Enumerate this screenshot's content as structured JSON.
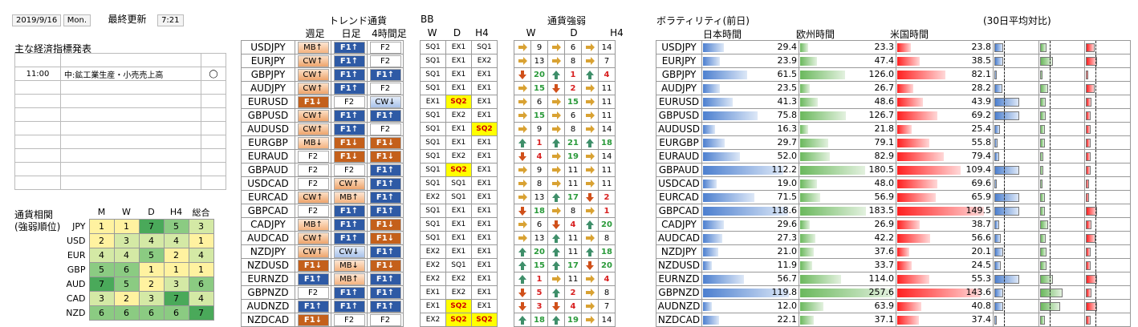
{
  "header": {
    "date": "2019/9/16",
    "weekday": "Mon.",
    "updated_label": "最終更新",
    "time": "7:21"
  },
  "econ": {
    "title": "主な経済指標発表",
    "rows": [
      {
        "time": "",
        "event": "",
        "mark": ""
      },
      {
        "time": "11:00",
        "event": "中:鉱工業生産・小売売上高",
        "mark": "◯"
      },
      {
        "time": "",
        "event": "",
        "mark": ""
      },
      {
        "time": "",
        "event": "",
        "mark": ""
      },
      {
        "time": "",
        "event": "",
        "mark": ""
      },
      {
        "time": "",
        "event": "",
        "mark": ""
      },
      {
        "time": "",
        "event": "",
        "mark": ""
      },
      {
        "time": "",
        "event": "",
        "mark": ""
      },
      {
        "time": "",
        "event": "",
        "mark": ""
      },
      {
        "time": "",
        "event": "",
        "mark": ""
      }
    ]
  },
  "corr": {
    "label1": "通貨相関",
    "label2": "(強弱順位)",
    "headers": [
      "M",
      "W",
      "D",
      "H4",
      "総合"
    ],
    "rows": [
      {
        "ccy": "JPY",
        "v": [
          "1",
          "1",
          "7",
          "5",
          "3"
        ]
      },
      {
        "ccy": "USD",
        "v": [
          "2",
          "3",
          "4",
          "4",
          "1"
        ]
      },
      {
        "ccy": "EUR",
        "v": [
          "4",
          "4",
          "5",
          "2",
          "4"
        ]
      },
      {
        "ccy": "GBP",
        "v": [
          "5",
          "6",
          "1",
          "1",
          "1"
        ]
      },
      {
        "ccy": "AUD",
        "v": [
          "7",
          "5",
          "2",
          "3",
          "6"
        ]
      },
      {
        "ccy": "CAD",
        "v": [
          "3",
          "2",
          "3",
          "7",
          "4"
        ]
      },
      {
        "ccy": "NZD",
        "v": [
          "6",
          "6",
          "6",
          "6",
          "7"
        ]
      }
    ]
  },
  "trend": {
    "title": "トレンド通貨",
    "headers": [
      "週足",
      "日足",
      "4時間足"
    ],
    "rows": [
      {
        "pair": "USDJPY",
        "w": "MB↑",
        "d": "F1↑",
        "h": "F2"
      },
      {
        "pair": "EURJPY",
        "w": "CW↑",
        "d": "F1↑",
        "h": "F2"
      },
      {
        "pair": "GBPJPY",
        "w": "CW↑",
        "d": "F1↑",
        "h": "F1↑"
      },
      {
        "pair": "AUDJPY",
        "w": "CW↑",
        "d": "F1↑",
        "h": "F2"
      },
      {
        "pair": "EURUSD",
        "w": "F1↓",
        "d": "F2",
        "h": "CW↓"
      },
      {
        "pair": "GBPUSD",
        "w": "CW↑",
        "d": "F1↑",
        "h": "F1↑"
      },
      {
        "pair": "AUDUSD",
        "w": "CW↑",
        "d": "F1↑",
        "h": "F2"
      },
      {
        "pair": "EURGBP",
        "w": "MB↓",
        "d": "F1↓",
        "h": "F1↓"
      },
      {
        "pair": "EURAUD",
        "w": "F2",
        "d": "F1↓",
        "h": "F1↓"
      },
      {
        "pair": "GBPAUD",
        "w": "F2",
        "d": "F2",
        "h": "F1↑"
      },
      {
        "pair": "USDCAD",
        "w": "F2",
        "d": "CW↑",
        "h": "F1↑"
      },
      {
        "pair": "EURCAD",
        "w": "CW↑",
        "d": "MB↑",
        "h": "F1↑"
      },
      {
        "pair": "GBPCAD",
        "w": "F2",
        "d": "F1↑",
        "h": "F1↑"
      },
      {
        "pair": "CADJPY",
        "w": "MB↑",
        "d": "F1↑",
        "h": "F1↓"
      },
      {
        "pair": "AUDCAD",
        "w": "CW↑",
        "d": "F1↑",
        "h": "F1↓"
      },
      {
        "pair": "NZDJPY",
        "w": "CW↑",
        "d": "CW↓",
        "h": "F1↑"
      },
      {
        "pair": "NZDUSD",
        "w": "F1↓",
        "d": "MB↓",
        "h": "F1↓"
      },
      {
        "pair": "EURNZD",
        "w": "F1↑",
        "d": "MB↑",
        "h": "F1↑"
      },
      {
        "pair": "GBPNZD",
        "w": "F2",
        "d": "F1↑",
        "h": "F1↑"
      },
      {
        "pair": "AUDNZD",
        "w": "F1↑",
        "d": "F1↑",
        "h": "F1↑"
      },
      {
        "pair": "NZDCAD",
        "w": "F1↓",
        "d": "F2",
        "h": "F2"
      }
    ]
  },
  "bb": {
    "title": "BB",
    "headers": [
      "W",
      "D",
      "H4"
    ],
    "rows": [
      [
        "SQ1",
        "EX1",
        "SQ1"
      ],
      [
        "SQ1",
        "EX1",
        "EX2"
      ],
      [
        "SQ1",
        "EX1",
        "EX1"
      ],
      [
        "SQ1",
        "EX1",
        "EX1"
      ],
      [
        "EX1",
        "SQ2",
        "EX1"
      ],
      [
        "SQ1",
        "EX2",
        "EX1"
      ],
      [
        "SQ1",
        "EX1",
        "SQ2"
      ],
      [
        "SQ1",
        "EX1",
        "EX1"
      ],
      [
        "SQ1",
        "EX2",
        "EX1"
      ],
      [
        "SQ1",
        "SQ2",
        "EX1"
      ],
      [
        "SQ1",
        "SQ1",
        "EX1"
      ],
      [
        "EX2",
        "SQ1",
        "EX1"
      ],
      [
        "SQ1",
        "EX1",
        "EX1"
      ],
      [
        "SQ1",
        "EX1",
        "EX1"
      ],
      [
        "SQ1",
        "EX1",
        "EX1"
      ],
      [
        "EX2",
        "EX1",
        "EX1"
      ],
      [
        "EX2",
        "SQ1",
        "EX1"
      ],
      [
        "EX2",
        "EX2",
        "EX1"
      ],
      [
        "EX1",
        "EX2",
        "EX1"
      ],
      [
        "EX1",
        "SQ2",
        "EX1"
      ],
      [
        "EX2",
        "SQ2",
        "SQ2"
      ]
    ]
  },
  "strength": {
    "title": "通貨強弱",
    "headers": [
      "W",
      "D",
      "H4"
    ],
    "rows": [
      [
        "s",
        "9",
        "s",
        "6",
        "s",
        "14"
      ],
      [
        "s",
        "13",
        "s",
        "8",
        "s",
        "7"
      ],
      [
        "d",
        "20",
        "u",
        "1",
        "u",
        "4"
      ],
      [
        "s",
        "15",
        "d",
        "2",
        "s",
        "11"
      ],
      [
        "s",
        "6",
        "s",
        "15",
        "s",
        "11"
      ],
      [
        "s",
        "15",
        "s",
        "6",
        "s",
        "11"
      ],
      [
        "s",
        "9",
        "s",
        "8",
        "s",
        "14"
      ],
      [
        "u",
        "1",
        "u",
        "21",
        "u",
        "18"
      ],
      [
        "d",
        "4",
        "s",
        "19",
        "s",
        "14"
      ],
      [
        "s",
        "9",
        "s",
        "11",
        "s",
        "11"
      ],
      [
        "s",
        "8",
        "s",
        "11",
        "s",
        "11"
      ],
      [
        "s",
        "13",
        "u",
        "17",
        "d",
        "2"
      ],
      [
        "d",
        "18",
        "s",
        "8",
        "s",
        "1"
      ],
      [
        "s",
        "6",
        "d",
        "4",
        "u",
        "20"
      ],
      [
        "s",
        "13",
        "u",
        "11",
        "s",
        "8"
      ],
      [
        "u",
        "20",
        "u",
        "11",
        "u",
        "18"
      ],
      [
        "u",
        "15",
        "u",
        "17",
        "d",
        "20"
      ],
      [
        "u",
        "1",
        "s",
        "11",
        "s",
        "4"
      ],
      [
        "d",
        "5",
        "u",
        "2",
        "s",
        "8"
      ],
      [
        "d",
        "3",
        "d",
        "4",
        "s",
        "7"
      ],
      [
        "u",
        "18",
        "u",
        "19",
        "s",
        "14"
      ]
    ]
  },
  "volatility": {
    "title": "ボラティリティ(前日)",
    "ratio_title": "(30日平均対比)",
    "headers": [
      "日本時間",
      "欧州時間",
      "米国時間"
    ],
    "rows": [
      {
        "pair": "USDJPY",
        "jp": "29.4",
        "eu": "23.3",
        "us": "23.8",
        "r": [
          0.2,
          0.15,
          0.2
        ]
      },
      {
        "pair": "EURJPY",
        "jp": "23.9",
        "eu": "47.4",
        "us": "38.5",
        "r": [
          0.2,
          0.28,
          0.25
        ]
      },
      {
        "pair": "GBPJPY",
        "jp": "61.5",
        "eu": "126.0",
        "us": "82.1",
        "r": [
          0.05,
          0.06,
          0.05
        ]
      },
      {
        "pair": "AUDJPY",
        "jp": "23.5",
        "eu": "26.7",
        "us": "28.2",
        "r": [
          0.18,
          0.18,
          0.2
        ]
      },
      {
        "pair": "EURUSD",
        "jp": "41.3",
        "eu": "48.6",
        "us": "43.9",
        "r": [
          0.55,
          0.12,
          0.12
        ]
      },
      {
        "pair": "GBPUSD",
        "jp": "75.8",
        "eu": "126.7",
        "us": "69.2",
        "r": [
          0.55,
          0.12,
          0.1
        ]
      },
      {
        "pair": "AUDUSD",
        "jp": "16.3",
        "eu": "21.8",
        "us": "25.4",
        "r": [
          0.12,
          0.1,
          0.1
        ]
      },
      {
        "pair": "EURGBP",
        "jp": "29.7",
        "eu": "79.1",
        "us": "55.8",
        "r": [
          0.08,
          0.1,
          0.1
        ]
      },
      {
        "pair": "EURAUD",
        "jp": "52.0",
        "eu": "82.9",
        "us": "79.4",
        "r": [
          0.1,
          0.08,
          0.1
        ]
      },
      {
        "pair": "GBPAUD",
        "jp": "112.2",
        "eu": "180.5",
        "us": "109.4",
        "r": [
          0.55,
          0.08,
          0.1
        ]
      },
      {
        "pair": "USDCAD",
        "jp": "19.0",
        "eu": "48.0",
        "us": "69.6",
        "r": [
          0.05,
          0.05,
          0.08
        ]
      },
      {
        "pair": "EURCAD",
        "jp": "71.5",
        "eu": "56.9",
        "us": "65.9",
        "r": [
          0.55,
          0.1,
          0.08
        ]
      },
      {
        "pair": "GBPCAD",
        "jp": "118.6",
        "eu": "183.5",
        "us": "149.5",
        "r": [
          0.55,
          0.1,
          0.25
        ]
      },
      {
        "pair": "CADJPY",
        "jp": "29.6",
        "eu": "26.9",
        "us": "38.7",
        "r": [
          0.1,
          0.18,
          0.12
        ]
      },
      {
        "pair": "AUDCAD",
        "jp": "27.3",
        "eu": "42.2",
        "us": "56.6",
        "r": [
          0.15,
          0.12,
          0.22
        ]
      },
      {
        "pair": "NZDJPY",
        "jp": "21.0",
        "eu": "37.6",
        "us": "20.1",
        "r": [
          0.2,
          0.15,
          0.1
        ]
      },
      {
        "pair": "NZDUSD",
        "jp": "11.9",
        "eu": "33.7",
        "us": "24.5",
        "r": [
          0.15,
          0.15,
          0.1
        ]
      },
      {
        "pair": "EURNZD",
        "jp": "56.7",
        "eu": "114.0",
        "us": "55.3",
        "r": [
          0.55,
          0.28,
          0.25
        ]
      },
      {
        "pair": "GBPNZD",
        "jp": "119.8",
        "eu": "257.6",
        "us": "143.6",
        "r": [
          0.2,
          0.5,
          0.12
        ]
      },
      {
        "pair": "AUDNZD",
        "jp": "12.0",
        "eu": "63.9",
        "us": "40.8",
        "r": [
          0.2,
          0.45,
          0.25
        ]
      },
      {
        "pair": "NZDCAD",
        "jp": "22.1",
        "eu": "37.1",
        "us": "37.4",
        "r": [
          0.05,
          0.1,
          0.1
        ]
      }
    ]
  },
  "colors": {
    "corr_low": "#fff3a8",
    "corr_mid": "#c9e4a0",
    "corr_high": "#55b066",
    "f1_up": "#2e5aa5",
    "f1_down": "#c4601b"
  }
}
